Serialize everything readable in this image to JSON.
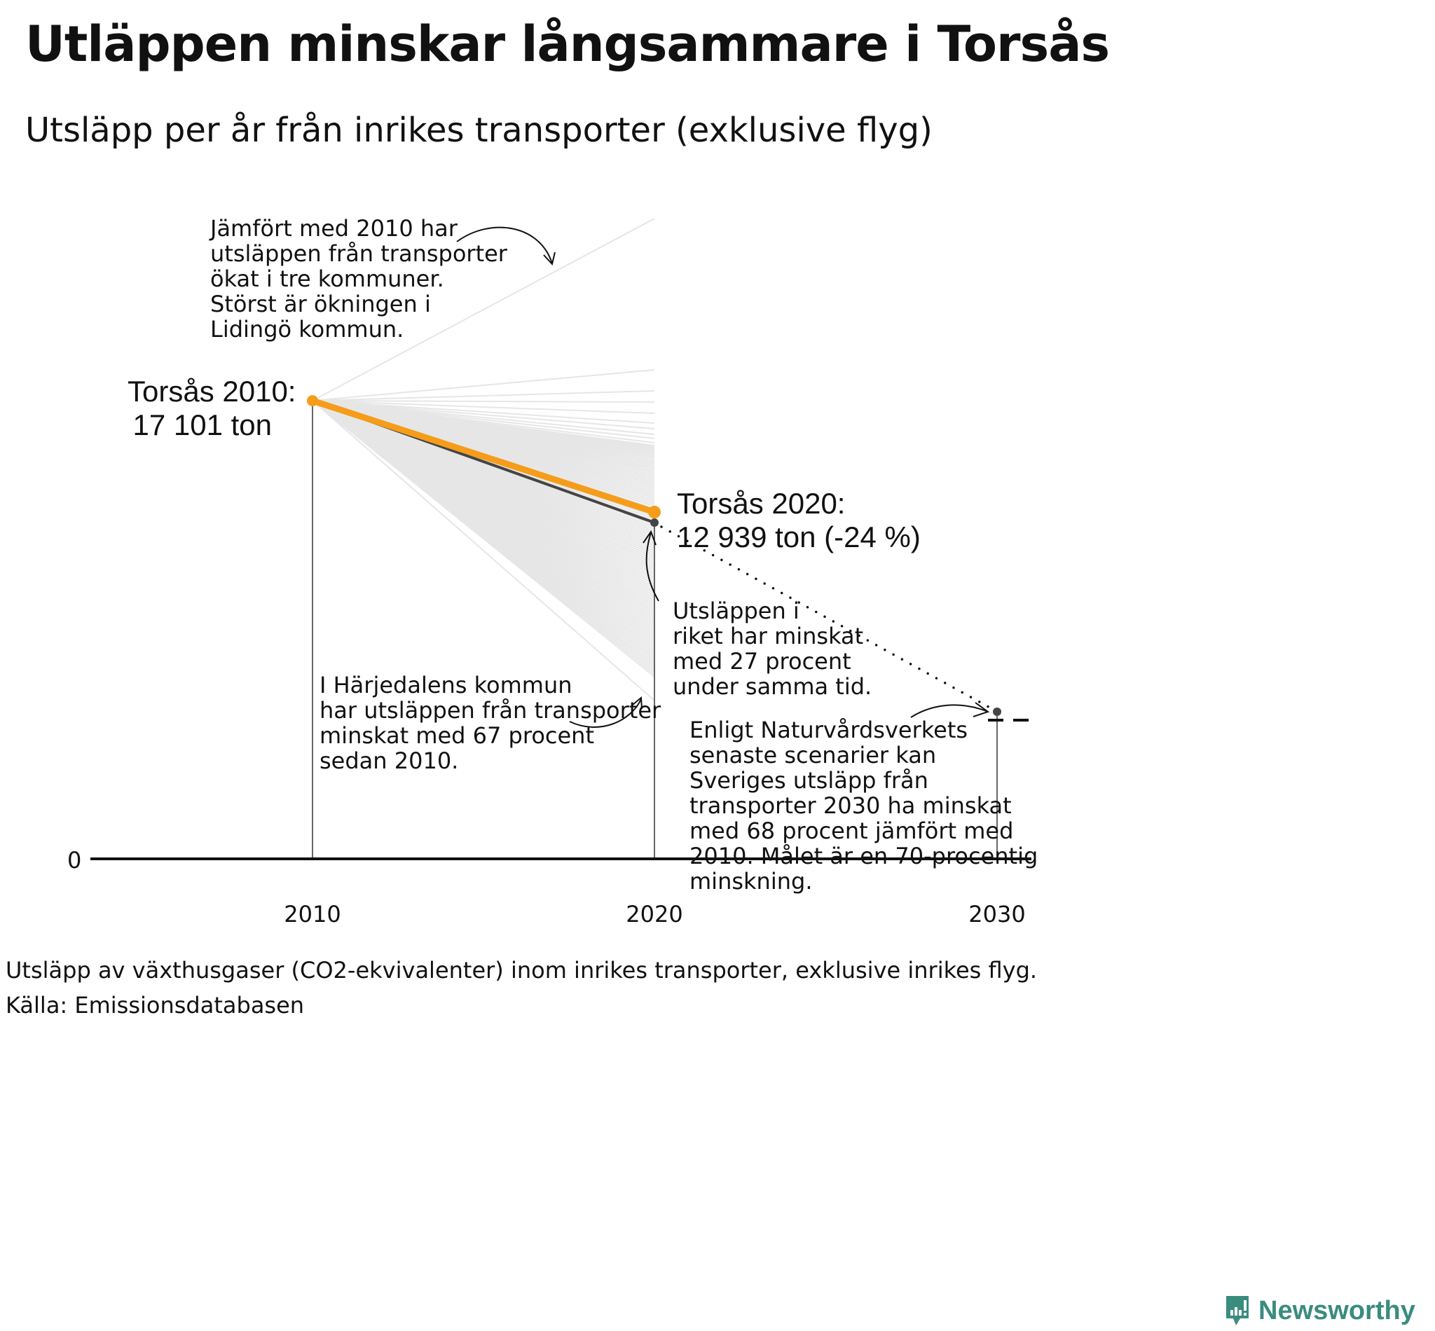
{
  "header": {
    "title": "Utläppen minskar långsammare i Torsås",
    "subtitle": "Utsläpp per år från inrikes transporter (exklusive flyg)"
  },
  "labels": {
    "torsas_2010_line1": "Torsås 2010:",
    "torsas_2010_line2": "17 101 ton",
    "torsas_2020_line1": "Torsås 2020:",
    "torsas_2020_line2": "12 939 ton (-24 %)",
    "annotation_lidingo": "Jämfört med 2010 har\nutsläppen från transporter\nökat i tre kommuner.\nStörst är ökningen i\nLidingö kommun.",
    "annotation_harjedalen": "I Härjedalens kommun\nhar utsläppen från transporter\nminskat med 67 procent\nsedan 2010.",
    "annotation_riket": "Utsläppen i\nriket har minskat\nmed 27 procent\nunder samma tid.",
    "annotation_2030": "Enligt Naturvårdsverkets\nsenaste scenarier kan\nSveriges utsläpp från\ntransporter 2030 ha minskat\nmed 68 procent jämfört med\n2010. Målet är en 70-procentig\nminskning.",
    "y_zero": "0",
    "x_ticks": [
      "2010",
      "2020",
      "2030"
    ]
  },
  "footer": {
    "note": "Utsläpp av växthusgaser (CO2-ekvivalenter) inom inrikes transporter, exklusive inrikes flyg.",
    "source": "Källa: Emissionsdatabasen",
    "logo": "Newsworthy"
  },
  "colors": {
    "highlight": "#f59c1a",
    "national": "#444444",
    "others": "#e6e6e6",
    "axis": "#111111",
    "logo": "#3a8c7e"
  },
  "chart_data": {
    "type": "line",
    "title": "Utläppen minskar långsammare i Torsås",
    "subtitle": "Utsläpp per år från inrikes transporter (exklusive flyg)",
    "xlabel": "",
    "ylabel": "",
    "x": [
      2010,
      2020,
      2030
    ],
    "ylim": [
      0,
      17101
    ],
    "grid": false,
    "series": [
      {
        "name": "Torsås",
        "unit": "ton",
        "values": [
          17101,
          12939,
          null
        ],
        "change_pct": -24,
        "color": "#f59c1a"
      },
      {
        "name": "Riket (indexerat till Torsås 2010)",
        "relative_change_pct_2020": -27,
        "relative_change_pct_2030_scenario": -68,
        "target_pct_2030": -70,
        "color": "#444444"
      },
      {
        "name": "Övriga kommuner (indexerat)",
        "color": "#e6e6e6",
        "note": "Spann från ca -67 % (Härjedalen) till ökning (störst i Lidingö)"
      }
    ],
    "annotations": [
      "Jämfört med 2010 har utsläppen från transporter ökat i tre kommuner. Störst är ökningen i Lidingö kommun.",
      "I Härjedalens kommun har utsläppen från transporter minskat med 67 procent sedan 2010.",
      "Utsläppen i riket har minskat med 27 procent under samma tid.",
      "Enligt Naturvårdsverkets senaste scenarier kan Sveriges utsläpp från transporter 2030 ha minskat med 68 procent jämfört med 2010. Målet är en 70-procentig minskning."
    ]
  }
}
